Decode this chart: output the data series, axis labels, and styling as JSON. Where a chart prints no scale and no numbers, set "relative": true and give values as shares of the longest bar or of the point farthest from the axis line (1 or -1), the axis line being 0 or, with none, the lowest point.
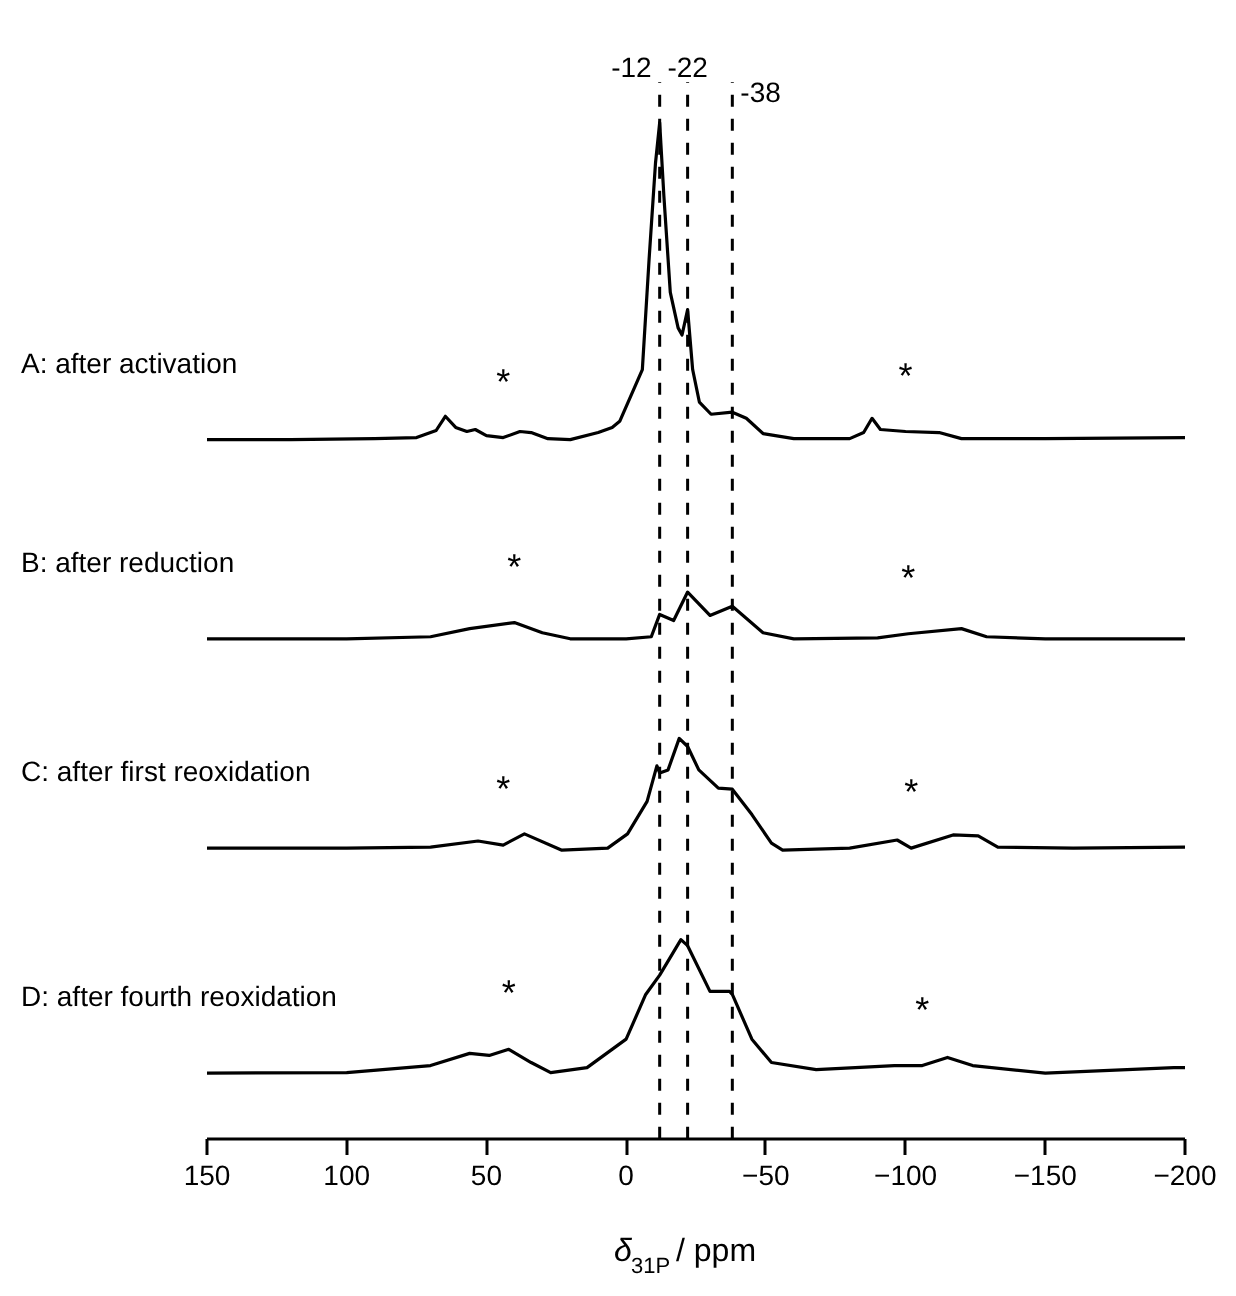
{
  "chart_data": {
    "type": "line",
    "relative": true,
    "xlabel": "δ$_{31P}$ / ppm",
    "xlim": [
      150,
      -200
    ],
    "xticks": [
      150,
      100,
      50,
      0,
      -50,
      -100,
      -150,
      -200
    ],
    "grid": false,
    "marker": "none",
    "line_style": "solid",
    "series": [
      {
        "name": "A: after activation",
        "color": "#000000",
        "x": [
          150,
          120,
          90,
          75,
          68,
          64.7,
          61,
          57,
          54,
          50,
          44,
          38,
          34,
          28,
          20,
          10,
          5,
          2.3,
          -5.8,
          -8.2,
          -10.5,
          -12,
          -13.5,
          -15.8,
          -18.6,
          -20,
          -22,
          -23.8,
          -26.2,
          -30.4,
          -38,
          -43,
          -49,
          -60,
          -80,
          -85,
          -88,
          -91,
          -100,
          -112,
          -120,
          -150,
          -200
        ],
        "values": [
          0.688,
          0.688,
          0.689,
          0.69,
          0.697,
          0.711,
          0.7,
          0.696,
          0.698,
          0.692,
          0.69,
          0.696,
          0.695,
          0.689,
          0.688,
          0.695,
          0.7,
          0.706,
          0.757,
          0.865,
          0.96,
          1.0,
          0.928,
          0.833,
          0.798,
          0.791,
          0.816,
          0.757,
          0.725,
          0.713,
          0.715,
          0.709,
          0.694,
          0.689,
          0.689,
          0.695,
          0.709,
          0.698,
          0.696,
          0.695,
          0.689,
          0.689,
          0.69
        ]
      },
      {
        "name": "B: after reduction",
        "color": "#000000",
        "x": [
          150,
          100,
          70,
          56,
          40,
          30,
          20,
          0,
          -9,
          -12,
          -17,
          -22,
          -30,
          -38,
          -49,
          -60,
          -90,
          -101,
          -120,
          -129,
          -150,
          -200
        ],
        "values": [
          0.492,
          0.492,
          0.494,
          0.502,
          0.508,
          0.498,
          0.492,
          0.492,
          0.494,
          0.516,
          0.51,
          0.538,
          0.515,
          0.524,
          0.498,
          0.492,
          0.493,
          0.497,
          0.502,
          0.494,
          0.492,
          0.492
        ]
      },
      {
        "name": "C: after first reoxidation",
        "color": "#000000",
        "x": [
          150,
          100,
          70,
          53,
          44,
          36.4,
          23,
          6.6,
          -0.5,
          -7.5,
          -11,
          -12,
          -15,
          -19,
          -22,
          -26,
          -33,
          -38,
          -45,
          -52,
          -56,
          -80,
          -97,
          -102,
          -117,
          -126,
          -133,
          -160,
          -200
        ],
        "values": [
          0.286,
          0.286,
          0.287,
          0.293,
          0.289,
          0.3,
          0.284,
          0.286,
          0.3,
          0.332,
          0.367,
          0.36,
          0.363,
          0.394,
          0.386,
          0.363,
          0.345,
          0.344,
          0.319,
          0.291,
          0.284,
          0.286,
          0.294,
          0.286,
          0.299,
          0.298,
          0.287,
          0.286,
          0.287
        ]
      },
      {
        "name": "D: after fourth reoxidation",
        "color": "#000000",
        "x": [
          150,
          100,
          70,
          56,
          49,
          42,
          34,
          27,
          14,
          0,
          -7,
          -12,
          -19.6,
          -22,
          -30,
          -37,
          -38,
          -45,
          -52,
          -68,
          -96,
          -106,
          -115,
          -124,
          -150,
          -196,
          -200
        ],
        "values": [
          0.0646,
          0.065,
          0.072,
          0.084,
          0.082,
          0.088,
          0.075,
          0.065,
          0.07,
          0.098,
          0.142,
          0.161,
          0.196,
          0.19,
          0.145,
          0.145,
          0.142,
          0.098,
          0.075,
          0.068,
          0.072,
          0.072,
          0.08,
          0.072,
          0.0646,
          0.07,
          0.07
        ]
      }
    ],
    "ref_lines": [
      {
        "axis": "x",
        "value": -12,
        "label": "-12",
        "color": "#000000",
        "line_style": "dashed"
      },
      {
        "axis": "x",
        "value": -22,
        "label": "-22",
        "color": "#000000",
        "line_style": "dashed"
      },
      {
        "axis": "x",
        "value": -38,
        "label": "-38",
        "color": "#000000",
        "line_style": "dashed"
      }
    ],
    "annotations": [
      {
        "text": "*",
        "x": 44,
        "y": 0.69
      },
      {
        "text": "*",
        "x": -100,
        "y": 0.696
      },
      {
        "text": "*",
        "x": 40,
        "y": 0.508
      },
      {
        "text": "*",
        "x": -101,
        "y": 0.497
      },
      {
        "text": "*",
        "x": 44,
        "y": 0.289
      },
      {
        "text": "*",
        "x": -102,
        "y": 0.286
      },
      {
        "text": "*",
        "x": 42,
        "y": 0.088
      },
      {
        "text": "*",
        "x": -106,
        "y": 0.072
      }
    ]
  }
}
